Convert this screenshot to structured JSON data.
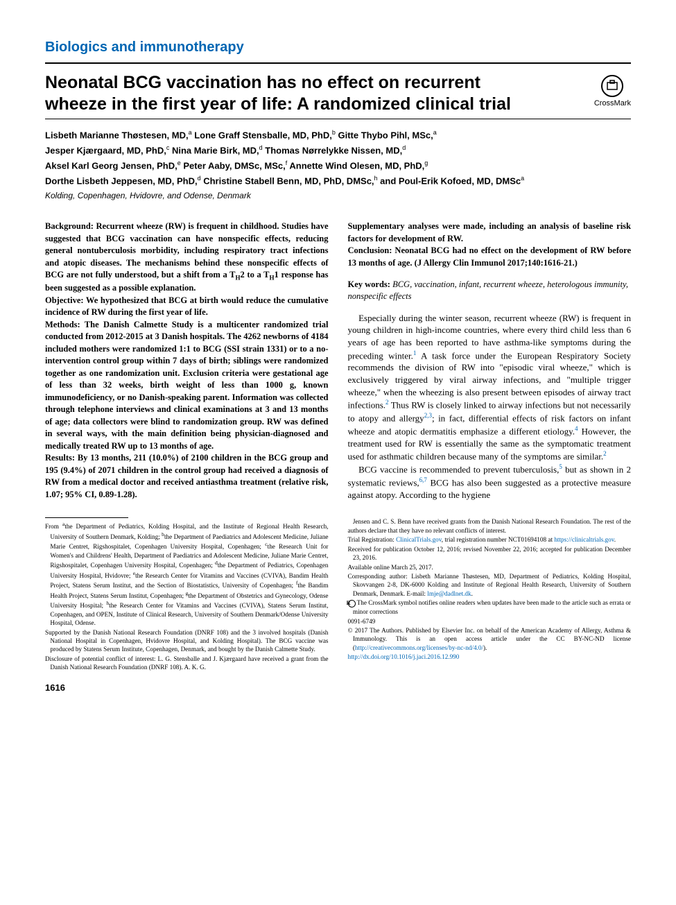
{
  "section_label": "Biologics and immunotherapy",
  "title": "Neonatal BCG vaccination has no effect on recurrent wheeze in the first year of life: A randomized clinical trial",
  "crossmark_label": "CrossMark",
  "authors_html": "Lisbeth Marianne Thøstesen, MD,<sup>a</sup> Lone Graff Stensballe, MD, PhD,<sup>b</sup> Gitte Thybo Pihl, MSc,<sup>a</sup><br>Jesper Kjærgaard, MD, PhD,<sup>c</sup> Nina Marie Birk, MD,<sup>d</sup> Thomas Nørrelykke Nissen, MD,<sup>d</sup><br>Aksel Karl Georg Jensen, PhD,<sup>e</sup> Peter Aaby, DMSc, MSc,<sup>f</sup> Annette Wind Olesen, MD, PhD,<sup>g</sup><br>Dorthe Lisbeth Jeppesen, MD, PhD,<sup>d</sup> Christine Stabell Benn, MD, PhD, DMSc,<sup>h</sup> and Poul-Erik Kofoed, MD, DMSc<sup>a</sup>",
  "affiliation_locations": "Kolding, Copenhagen, Hvidovre, and Odense, Denmark",
  "abstract": {
    "background": "Background: Recurrent wheeze (RW) is frequent in childhood. Studies have suggested that BCG vaccination can have nonspecific effects, reducing general nontuberculosis morbidity, including respiratory tract infections and atopic diseases. The mechanisms behind these nonspecific effects of BCG are not fully understood, but a shift from a T<sub>H</sub>2 to a T<sub>H</sub>1 response has been suggested as a possible explanation.",
    "objective": "Objective: We hypothesized that BCG at birth would reduce the cumulative incidence of RW during the first year of life.",
    "methods": "Methods: The Danish Calmette Study is a multicenter randomized trial conducted from 2012-2015 at 3 Danish hospitals. The 4262 newborns of 4184 included mothers were randomized 1:1 to BCG (SSI strain 1331) or to a no-intervention control group within 7 days of birth; siblings were randomized together as one randomization unit. Exclusion criteria were gestational age of less than 32 weeks, birth weight of less than 1000 g, known immunodeficiency, or no Danish-speaking parent. Information was collected through telephone interviews and clinical examinations at 3 and 13 months of age; data collectors were blind to randomization group. RW was defined in several ways, with the main definition being physician-diagnosed and medically treated RW up to 13 months of age.",
    "results": "Results: By 13 months, 211 (10.0%) of 2100 children in the BCG group and 195 (9.4%) of 2071 children in the control group had received a diagnosis of RW from a medical doctor and received antiasthma treatment (relative risk, 1.07; 95% CI, 0.89-1.28).",
    "results2": "Supplementary analyses were made, including an analysis of baseline risk factors for development of RW.",
    "conclusion": "Conclusion: Neonatal BCG had no effect on the development of RW before 13 months of age. (J Allergy Clin Immunol 2017;140:1616-21.)"
  },
  "keywords_label": "Key words:",
  "keywords": "BCG, vaccination, infant, recurrent wheeze, heterologous immunity, nonspecific effects",
  "body_para1": "Especially during the winter season, recurrent wheeze (RW) is frequent in young children in high-income countries, where every third child less than 6 years of age has been reported to have asthma-like symptoms during the preceding winter.<span class='ref-sup'>1</span> A task force under the European Respiratory Society recommends the division of RW into \"episodic viral wheeze,\" which is exclusively triggered by viral airway infections, and \"multiple trigger wheeze,\" when the wheezing is also present between episodes of airway tract infections.<span class='ref-sup'>2</span> Thus RW is closely linked to airway infections but not necessarily to atopy and allergy<span class='ref-sup'>2,3</span>; in fact, differential effects of risk factors on infant wheeze and atopic dermatitis emphasize a different etiology.<span class='ref-sup'>4</span> However, the treatment used for RW is essentially the same as the symptomatic treatment used for asthmatic children because many of the symptoms are similar.<span class='ref-sup'>2</span>",
  "body_para2": "BCG vaccine is recommended to prevent tuberculosis,<span class='ref-sup'>5</span> but as shown in 2 systematic reviews,<span class='ref-sup'>6,7</span> BCG has also been suggested as a protective measure against atopy. According to the hygiene",
  "footnotes": {
    "from": "From <sup>a</sup>the Department of Pediatrics, Kolding Hospital, and the Institute of Regional Health Research, University of Southern Denmark, Kolding; <sup>b</sup>the Department of Paediatrics and Adolescent Medicine, Juliane Marie Centret, Rigshospitalet, Copenhagen University Hospital, Copenhagen; <sup>c</sup>the Research Unit for Women's and Childrens' Health, Department of Paediatrics and Adolescent Medicine, Juliane Marie Centret, Rigshospitalet, Copenhagen University Hospital, Copenhagen; <sup>d</sup>the Department of Pediatrics, Copenhagen University Hospital, Hvidovre; <sup>e</sup>the Research Center for Vitamins and Vaccines (CVIVA), Bandim Health Project, Statens Serum Institut, and the Section of Biostatistics, University of Copenhagen; <sup>f</sup>the Bandim Health Project, Statens Serum Institut, Copenhagen; <sup>g</sup>the Department of Obstetrics and Gynecology, Odense University Hospital; <sup>h</sup>the Research Center for Vitamins and Vaccines (CVIVA), Statens Serum Institut, Copenhagen, and OPEN, Institute of Clinical Research, University of Southern Denmark/Odense University Hospital, Odense.",
    "supported": "Supported by the Danish National Research Foundation (DNRF 108) and the 3 involved hospitals (Danish National Hospital in Copenhagen, Hvidovre Hospital, and Kolding Hospital). The BCG vaccine was produced by Statens Serum Institute, Copenhagen, Denmark, and bought by the Danish Calmette Study.",
    "disclosure": "Disclosure of potential conflict of interest: L. G. Stensballe and J. Kjærgaard have received a grant from the Danish National Research Foundation (DNRF 108). A. K. G.",
    "disclosure2": "Jensen and C. S. Benn have received grants from the Danish National Research Foundation. The rest of the authors declare that they have no relevant conflicts of interest.",
    "trial": "Trial Registration: <span class='link'>ClinicalTrials.gov</span>, trial registration number NCT01694108 at <span class='link'>https://clinicaltrials.gov</span>.",
    "received": "Received for publication October 12, 2016; revised November 22, 2016; accepted for publication December 23, 2016.",
    "available": "Available online March 25, 2017.",
    "corresponding": "Corresponding author: Lisbeth Marianne Thøstesen, MD, Department of Pediatrics, Kolding Hospital, Skovvangen 2-8, DK-6000 Kolding and Institute of Regional Health Research, University of Southern Denmark, Denmark. E-mail: <span class='link'>lmje@dadlnet.dk</span>.",
    "crossmark_note": "The CrossMark symbol notifies online readers when updates have been made to the article such as errata or minor corrections",
    "issn": "0091-6749",
    "copyright": "© 2017 The Authors. Published by Elsevier Inc. on behalf of the American Academy of Allergy, Asthma & Immunology. This is an open access article under the CC BY-NC-ND license (<span class='link'>http://creativecommons.org/licenses/by-nc-nd/4.0/</span>).",
    "doi": "<span class='link'>http://dx.doi.org/10.1016/j.jaci.2016.12.990</span>"
  },
  "page_number": "1616"
}
